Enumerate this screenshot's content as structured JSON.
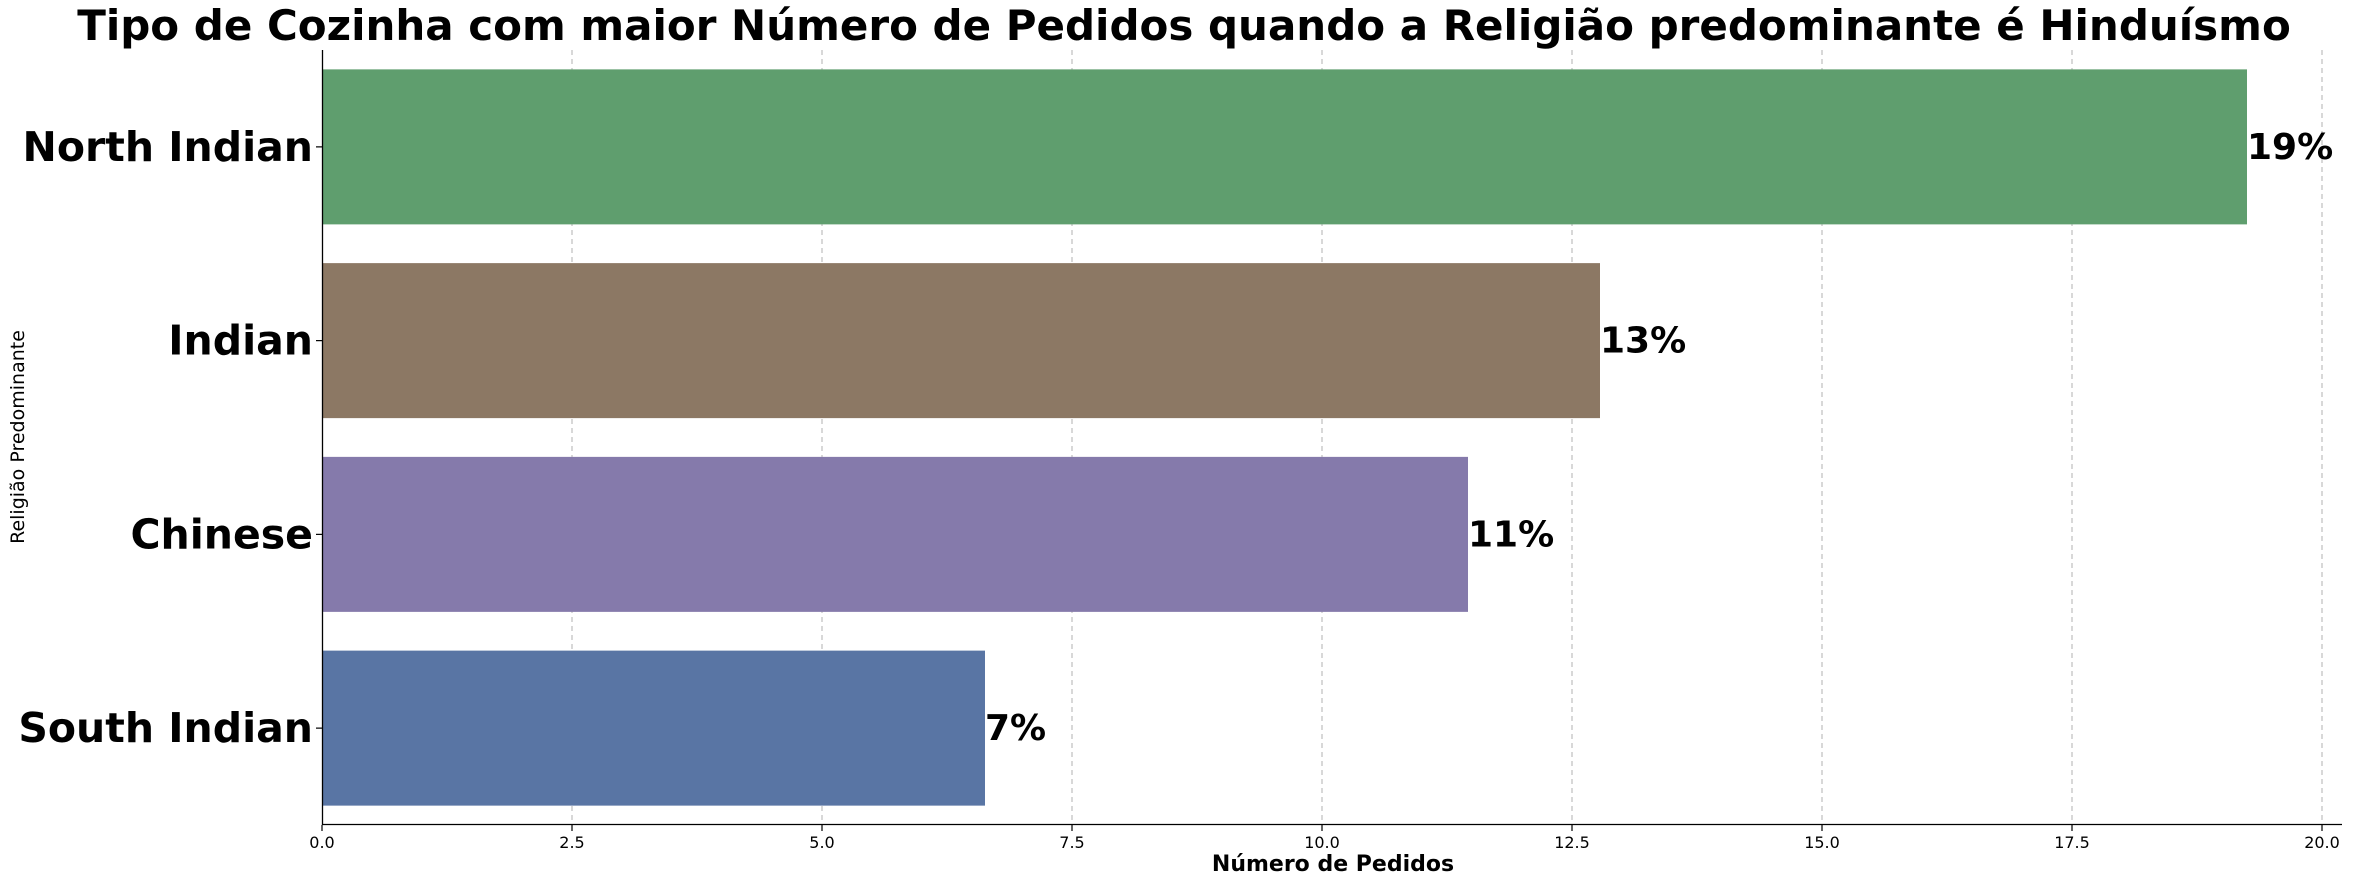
{
  "chart_data": {
    "type": "bar",
    "orientation": "horizontal",
    "title": "Tipo de Cozinha com maior Número de Pedidos quando a Religião predominante é Hinduísmo",
    "xlabel": "Número de Pedidos",
    "ylabel": "Religião Predominante",
    "categories": [
      "North Indian",
      "Indian",
      "Chinese",
      "South Indian"
    ],
    "values": [
      19.25,
      12.78,
      11.46,
      6.63
    ],
    "data_labels": [
      "19%",
      "13%",
      "11%",
      "7%"
    ],
    "colors": [
      "#5f9e6e",
      "#8c7864",
      "#857aab",
      "#5975a4"
    ],
    "xlim": [
      0,
      20.2
    ],
    "x_ticks": [
      0,
      2.5,
      5,
      7.5,
      10,
      12.5,
      15,
      17.5,
      20
    ],
    "x_tick_labels": [
      "0.0",
      "2.5",
      "5.0",
      "7.5",
      "10.0",
      "12.5",
      "15.0",
      "17.5",
      "20.0"
    ],
    "grid": "x-dashed",
    "legend": "none"
  }
}
